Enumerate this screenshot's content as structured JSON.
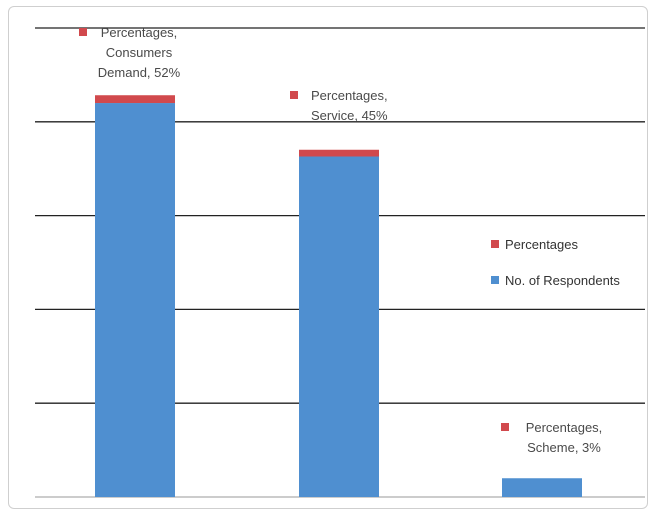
{
  "chart_data": {
    "type": "bar",
    "stacked": true,
    "categories": [
      "Consumers Demand",
      "Service",
      "Scheme"
    ],
    "series": [
      {
        "name": "No. of Respondents",
        "values": [
          420,
          363,
          20
        ],
        "color": "#4f8fd0"
      },
      {
        "name": "Percentages",
        "values": [
          52,
          45,
          3
        ],
        "color": "#d1494d"
      }
    ],
    "ylim": [
      0,
      500
    ],
    "gridlines": [
      0,
      100,
      200,
      300,
      400,
      500
    ],
    "grid": true,
    "legend_position": "right",
    "data_labels": [
      {
        "lines": [
          "Percentages,",
          "Consumers",
          "Demand, 52%"
        ]
      },
      {
        "lines": [
          "Percentages,",
          "Service, 45%"
        ]
      },
      {
        "lines": [
          "Percentages,",
          "Scheme, 3%"
        ]
      }
    ]
  }
}
